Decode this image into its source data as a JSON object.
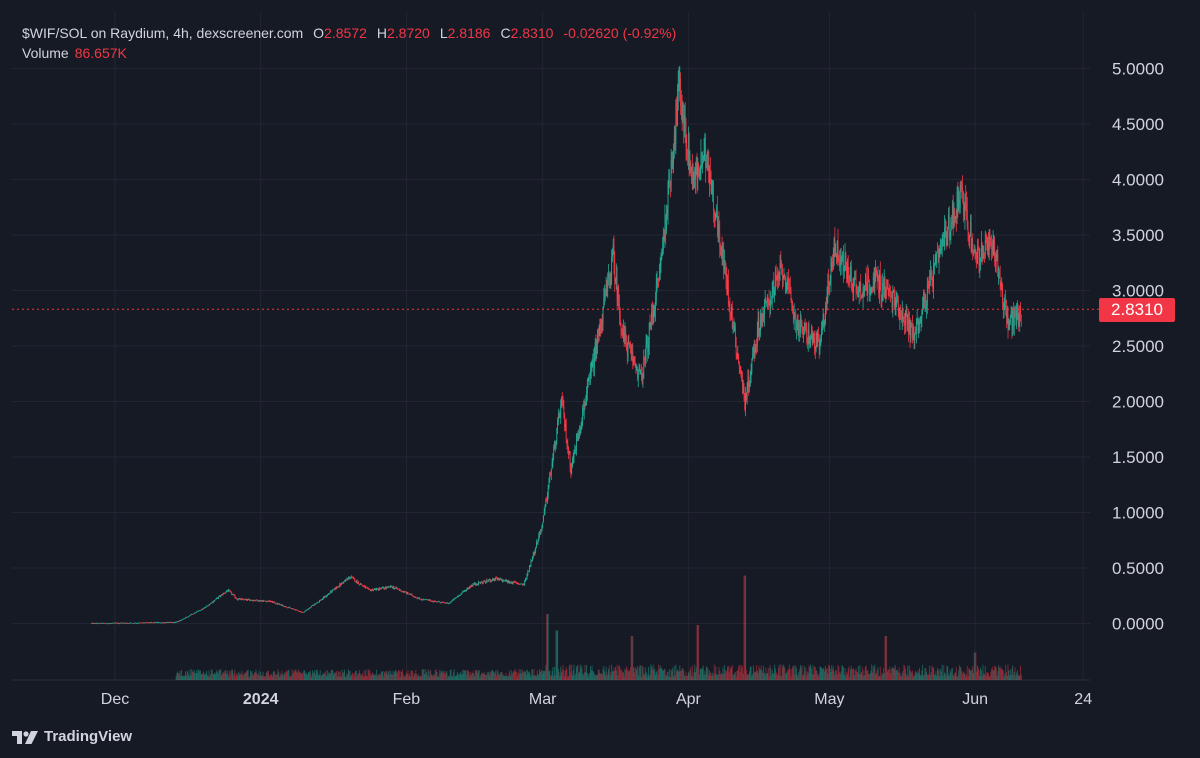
{
  "legend": {
    "title": "$WIF/SOL on Raydium, 4h, dexscreener.com",
    "o_label": "O",
    "open": "2.8572",
    "h_label": "H",
    "high": "2.8720",
    "l_label": "L",
    "low": "2.8186",
    "c_label": "C",
    "close": "2.8310",
    "change": "-0.02620 (-0.92%)",
    "volume_label": "Volume",
    "volume": "86.657K"
  },
  "last_price_tag": "2.8310",
  "brand": {
    "name": "TradingView",
    "logo_icon": "tradingview-logo-icon"
  },
  "colors": {
    "background": "#161a25",
    "up": "#22ab94",
    "down": "#f23645",
    "text": "#d1d4dc",
    "grid": "#232632"
  },
  "chart_data": {
    "type": "candlestick",
    "timeframe": "4h",
    "x_ticks": [
      "Dec",
      "2024",
      "Feb",
      "Mar",
      "Apr",
      "May",
      "Jun",
      "24"
    ],
    "y_ticks": [
      "5.0000",
      "4.5000",
      "4.0000",
      "3.5000",
      "3.0000",
      "2.5000",
      "2.0000",
      "1.5000",
      "1.0000",
      "0.5000",
      "0.0000"
    ],
    "ylim": [
      -0.5,
      5.25
    ],
    "last_price": 2.831,
    "grid": true,
    "price_path": [
      [
        "2023-11-26",
        0.0
      ],
      [
        "2023-12-14",
        0.01
      ],
      [
        "2023-12-20",
        0.14
      ],
      [
        "2023-12-25",
        0.3
      ],
      [
        "2023-12-27",
        0.22
      ],
      [
        "2024-01-03",
        0.2
      ],
      [
        "2024-01-10",
        0.1
      ],
      [
        "2024-01-14",
        0.22
      ],
      [
        "2024-01-20",
        0.42
      ],
      [
        "2024-01-24",
        0.3
      ],
      [
        "2024-01-29",
        0.33
      ],
      [
        "2024-02-04",
        0.22
      ],
      [
        "2024-02-10",
        0.18
      ],
      [
        "2024-02-15",
        0.35
      ],
      [
        "2024-02-20",
        0.4
      ],
      [
        "2024-02-26",
        0.35
      ],
      [
        "2024-03-01",
        0.9
      ],
      [
        "2024-03-05",
        2.0
      ],
      [
        "2024-03-07",
        1.4
      ],
      [
        "2024-03-11",
        2.2
      ],
      [
        "2024-03-16",
        3.3
      ],
      [
        "2024-03-18",
        2.6
      ],
      [
        "2024-03-22",
        2.2
      ],
      [
        "2024-03-26",
        3.2
      ],
      [
        "2024-03-30",
        4.8
      ],
      [
        "2024-04-02",
        4.0
      ],
      [
        "2024-04-05",
        4.2
      ],
      [
        "2024-04-09",
        3.1
      ],
      [
        "2024-04-13",
        2.0
      ],
      [
        "2024-04-16",
        2.7
      ],
      [
        "2024-04-21",
        3.2
      ],
      [
        "2024-04-24",
        2.7
      ],
      [
        "2024-04-29",
        2.5
      ],
      [
        "2024-05-02",
        3.4
      ],
      [
        "2024-05-07",
        3.0
      ],
      [
        "2024-05-11",
        3.1
      ],
      [
        "2024-05-15",
        2.9
      ],
      [
        "2024-05-19",
        2.6
      ],
      [
        "2024-05-22",
        3.0
      ],
      [
        "2024-05-29",
        3.9
      ],
      [
        "2024-06-01",
        3.3
      ],
      [
        "2024-06-05",
        3.4
      ],
      [
        "2024-06-08",
        2.7
      ],
      [
        "2024-06-11",
        2.83
      ]
    ],
    "volume_spikes": [
      [
        "2024-03-02",
        0.6
      ],
      [
        "2024-03-04",
        0.45
      ],
      [
        "2024-03-20",
        0.4
      ],
      [
        "2024-04-03",
        0.5
      ],
      [
        "2024-04-13",
        0.95
      ],
      [
        "2024-05-13",
        0.4
      ],
      [
        "2024-06-01",
        0.25
      ]
    ]
  }
}
